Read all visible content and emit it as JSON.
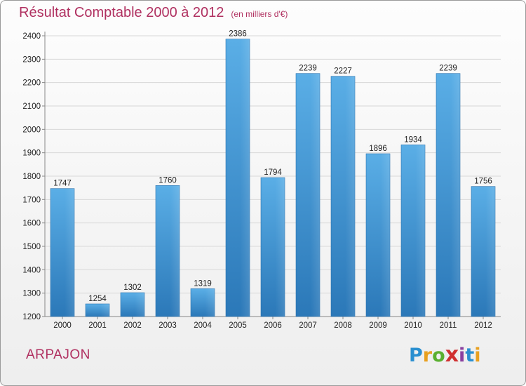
{
  "chart_data": {
    "type": "bar",
    "title": "Résultat Comptable 2000 à 2012",
    "unit_label": "(en milliers d'€)",
    "categories": [
      "2000",
      "2001",
      "2002",
      "2003",
      "2004",
      "2005",
      "2006",
      "2007",
      "2008",
      "2009",
      "2010",
      "2011",
      "2012"
    ],
    "values": [
      1747,
      1254,
      1302,
      1760,
      1319,
      2386,
      1794,
      2239,
      2227,
      1896,
      1934,
      2239,
      1756
    ],
    "ylim": [
      1200,
      2400
    ],
    "yticks": [
      1200,
      1300,
      1400,
      1500,
      1600,
      1700,
      1800,
      1900,
      2000,
      2100,
      2200,
      2300,
      2400
    ],
    "grid": true,
    "legend": "none",
    "bar_color_top": "#5aaee6",
    "bar_color_bottom": "#2b78b8"
  },
  "footer": {
    "city": "ARPAJON",
    "logo_letters": [
      "P",
      "r",
      "o",
      "x",
      "i",
      "t",
      "i"
    ],
    "logo_colors": [
      "#2a8fd0",
      "#e8a020",
      "#5ab030",
      "#d03030",
      "#8a40a0",
      "#2a8fd0",
      "#e8a020"
    ]
  },
  "colors": {
    "title": "#b03060",
    "grid": "#d8d8d8",
    "axis": "#888888"
  }
}
